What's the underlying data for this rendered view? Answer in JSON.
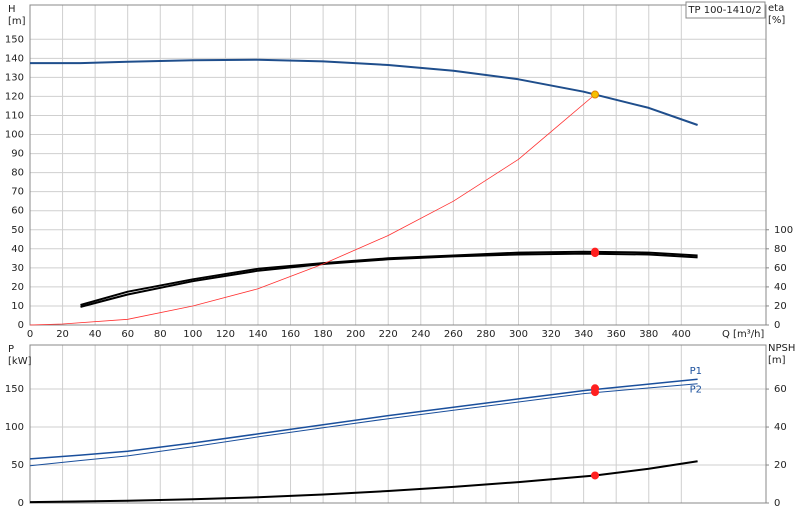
{
  "chart_data": [
    {
      "type": "line",
      "title": "TP 100-1410/2",
      "y_label": [
        "H",
        "[m]"
      ],
      "y2_label": [
        "eta",
        "[%]"
      ],
      "x_label": "Q [m³/h]",
      "xlim": [
        0,
        452
      ],
      "xticks": [
        0,
        20,
        40,
        60,
        80,
        100,
        120,
        140,
        160,
        180,
        200,
        220,
        240,
        260,
        280,
        300,
        320,
        340,
        360,
        380,
        400
      ],
      "show_xtick_labels": true,
      "ylim": [
        0,
        168
      ],
      "yticks": [
        0,
        10,
        20,
        30,
        40,
        50,
        60,
        70,
        80,
        90,
        100,
        110,
        120,
        130,
        140,
        150
      ],
      "y2lim": [
        0,
        336
      ],
      "y2ticks": [
        0,
        20,
        40,
        60,
        80,
        100
      ],
      "grid": true,
      "series": [
        {
          "color": "#1f4e8c",
          "width": 2,
          "x": [
            0,
            31,
            60,
            100,
            140,
            180,
            220,
            260,
            300,
            340,
            380,
            410
          ],
          "values": [
            137.5,
            137.5,
            138.2,
            139,
            139.3,
            138.4,
            136.5,
            133.5,
            129,
            122.5,
            114,
            105
          ]
        },
        {
          "color": "#000000",
          "width": 2,
          "axis": "y2",
          "x": [
            31,
            60,
            100,
            140,
            180,
            220,
            260,
            300,
            340,
            380,
            410
          ],
          "values": [
            19,
            32,
            46,
            57,
            64,
            69,
            72,
            74,
            75,
            74,
            71
          ]
        },
        {
          "color": "#000000",
          "width": 2,
          "axis": "y2",
          "x": [
            31,
            60,
            100,
            140,
            180,
            220,
            260,
            300,
            340,
            380,
            410
          ],
          "values": [
            21,
            35,
            48,
            59,
            65,
            70,
            73,
            76,
            77,
            76,
            73
          ]
        },
        {
          "color": "#ff3030",
          "width": 0.8,
          "x": [
            0,
            20,
            60,
            100,
            140,
            180,
            220,
            260,
            300,
            347
          ],
          "values": [
            0,
            0.5,
            3,
            10,
            19,
            32,
            47,
            65,
            87,
            121
          ]
        }
      ],
      "points": [
        {
          "x": 347,
          "y": 121,
          "color": "#f5c000"
        },
        {
          "x": 347,
          "y": 75.5,
          "axis": "y2",
          "color": "#ff2020"
        },
        {
          "x": 347,
          "y": 77,
          "axis": "y2",
          "color": "#ff2020"
        }
      ]
    },
    {
      "type": "line",
      "y_label": [
        "P",
        "[kW]"
      ],
      "y2_label": [
        "NPSH",
        "[m]"
      ],
      "xlim": [
        0,
        452
      ],
      "xticks": [
        0,
        20,
        40,
        60,
        80,
        100,
        120,
        140,
        160,
        180,
        200,
        220,
        240,
        260,
        280,
        300,
        320,
        340,
        360,
        380,
        400
      ],
      "show_xtick_labels": false,
      "ylim": [
        0,
        208
      ],
      "yticks": [
        0,
        50,
        100,
        150
      ],
      "y2lim": [
        0,
        83.2
      ],
      "y2ticks": [
        0,
        20,
        40,
        60
      ],
      "grid": true,
      "series": [
        {
          "name": "P1",
          "color": "#1a4f9c",
          "width": 1.5,
          "x": [
            0,
            31,
            60,
            100,
            140,
            180,
            220,
            260,
            300,
            340,
            410
          ],
          "values": [
            58,
            63,
            68,
            79,
            91,
            103,
            115,
            126,
            137,
            148,
            163
          ]
        },
        {
          "name": "P2",
          "color": "#1a4f9c",
          "width": 1,
          "x": [
            0,
            31,
            60,
            100,
            140,
            180,
            220,
            260,
            300,
            340,
            410
          ],
          "values": [
            49,
            56,
            62,
            74,
            87,
            99,
            111,
            122,
            133,
            144,
            157
          ]
        },
        {
          "color": "#000000",
          "width": 2,
          "axis": "y2",
          "x": [
            0,
            60,
            100,
            140,
            180,
            220,
            260,
            300,
            347,
            380,
            410
          ],
          "values": [
            0.5,
            1.2,
            2,
            3,
            4.5,
            6.3,
            8.5,
            11,
            14.5,
            18,
            22
          ]
        }
      ],
      "points": [
        {
          "x": 347,
          "y": 151,
          "color": "#ff2020"
        },
        {
          "x": 347,
          "y": 146,
          "color": "#ff2020"
        },
        {
          "x": 347,
          "y": 14.5,
          "axis": "y2",
          "color": "#ff2020"
        }
      ]
    }
  ]
}
